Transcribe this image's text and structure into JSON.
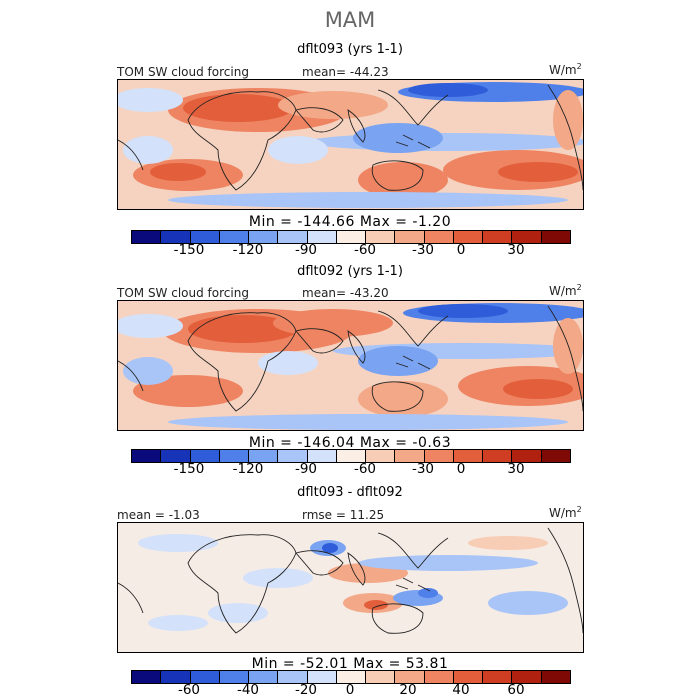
{
  "season": "MAM",
  "panels": [
    {
      "title": "dflt093 (yrs 1-1)",
      "left_label": "TOM SW cloud forcing",
      "center_label": "mean= -44.23",
      "unit_label": "W/m",
      "unit_sup": "2",
      "min_max_label": "Min = -144.66 Max = -1.20",
      "min": -144.66,
      "max": -1.2,
      "mean": -44.23
    },
    {
      "title": "dflt092 (yrs 1-1)",
      "left_label": "TOM SW cloud forcing",
      "center_label": "mean= -43.20",
      "unit_label": "W/m",
      "unit_sup": "2",
      "min_max_label": "Min = -146.04 Max = -0.63",
      "min": -146.04,
      "max": -0.63,
      "mean": -43.2
    },
    {
      "title": "dflt093 - dflt092",
      "left_label": "mean = -1.03",
      "center_label": "rmse = 11.25",
      "unit_label": "W/m",
      "unit_sup": "2",
      "min_max_label": "Min = -52.01 Max = 53.81",
      "min": -52.01,
      "max": 53.81,
      "mean": -1.03,
      "rmse": 11.25
    }
  ],
  "chart_data": [
    {
      "type": "heatmap",
      "title": "dflt093 (yrs 1-1)",
      "variable": "TOM SW cloud forcing",
      "units": "W/m2",
      "mean": -44.23,
      "min": -144.66,
      "max": -1.2,
      "colorbar": {
        "levels": [
          -165,
          -150,
          -135,
          -120,
          -105,
          -90,
          -75,
          -60,
          -45,
          -30,
          -15,
          0,
          15,
          30,
          45
        ],
        "tick_labels": [
          "-150",
          "-120",
          "-90",
          "-60",
          "-30",
          "0",
          "30"
        ],
        "tick_values": [
          -150,
          -120,
          -90,
          -60,
          -30,
          0,
          30
        ]
      }
    },
    {
      "type": "heatmap",
      "title": "dflt092 (yrs 1-1)",
      "variable": "TOM SW cloud forcing",
      "units": "W/m2",
      "mean": -43.2,
      "min": -146.04,
      "max": -0.63,
      "colorbar": {
        "levels": [
          -165,
          -150,
          -135,
          -120,
          -105,
          -90,
          -75,
          -60,
          -45,
          -30,
          -15,
          0,
          15,
          30,
          45
        ],
        "tick_labels": [
          "-150",
          "-120",
          "-90",
          "-60",
          "-30",
          "0",
          "30"
        ],
        "tick_values": [
          -150,
          -120,
          -90,
          -60,
          -30,
          0,
          30
        ]
      }
    },
    {
      "type": "heatmap",
      "title": "dflt093 - dflt092",
      "units": "W/m2",
      "mean": -1.03,
      "rmse": 11.25,
      "min": -52.01,
      "max": 53.81,
      "colorbar": {
        "levels": [
          -80,
          -70,
          -60,
          -50,
          -40,
          -30,
          -20,
          -10,
          0,
          10,
          20,
          30,
          40,
          50,
          60,
          70
        ],
        "tick_labels": [
          "-60",
          "-40",
          "-20",
          "0",
          "20",
          "40",
          "60"
        ],
        "tick_values": [
          -60,
          -40,
          -20,
          0,
          20,
          40,
          60
        ]
      }
    }
  ],
  "colors": {
    "colorbar_swatches": [
      "#0a0a7c",
      "#1733b8",
      "#2f5cd9",
      "#4f7fe8",
      "#7aa3f2",
      "#a9c4f7",
      "#d3e1fa",
      "#fbeee4",
      "#f7cdb5",
      "#f3a887",
      "#ee8461",
      "#e35f3c",
      "#cf3d22",
      "#b0220f",
      "#7f0a05"
    ],
    "coast": "#222222"
  }
}
